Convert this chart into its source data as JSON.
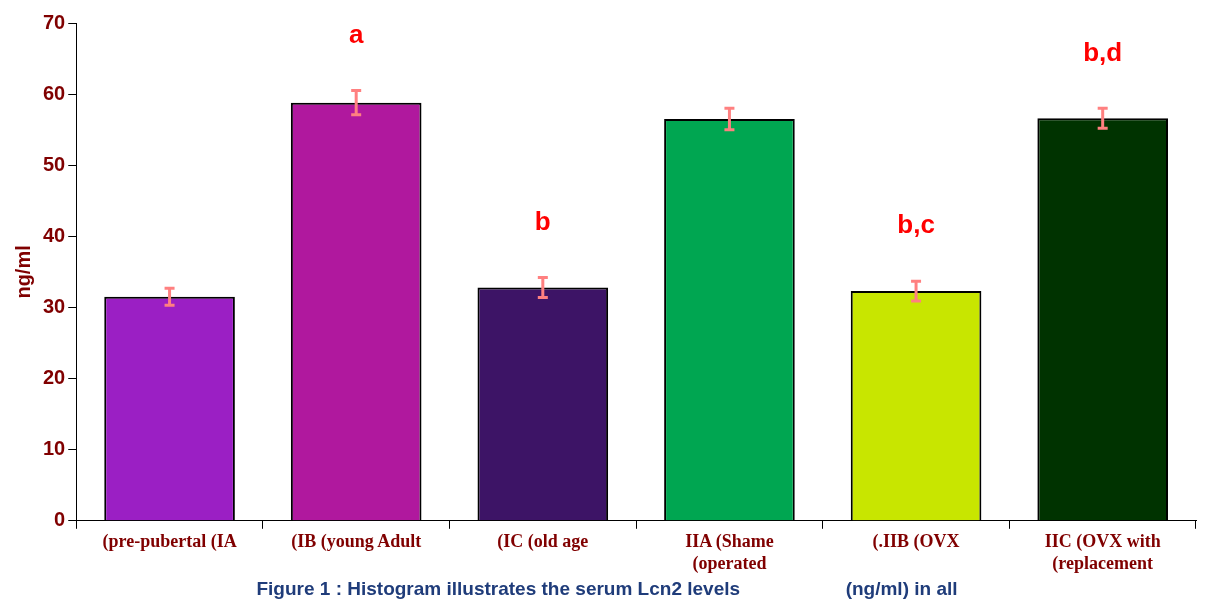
{
  "chart_data": {
    "type": "bar",
    "ylabel": "ng/ml",
    "categories": [
      "(pre-pubertal (IA",
      "(IB (young Adult",
      "(IC (old age",
      "IIA (Shame\n(operated",
      "(.IIB (OVX",
      "IIC (OVX with\n(replacement"
    ],
    "values": [
      31.5,
      58.8,
      32.8,
      56.5,
      32.3,
      56.6
    ],
    "errors": [
      1.2,
      1.7,
      1.4,
      1.5,
      1.4,
      1.4
    ],
    "colors": [
      "#9b1fc4",
      "#b0189e",
      "#3d1466",
      "#00a651",
      "#c8e600",
      "#003300"
    ],
    "ylim": [
      0,
      70
    ],
    "yticks": [
      0,
      10,
      20,
      30,
      40,
      50,
      60,
      70
    ],
    "grid": false,
    "legend": false,
    "value_labels": [
      null,
      "a",
      "b",
      null,
      "b,c",
      "b,d"
    ],
    "annotations": [
      "Figure 1 : Histogram illustrates the serum Lcn2 levels                    (ng/ml) in all"
    ]
  }
}
